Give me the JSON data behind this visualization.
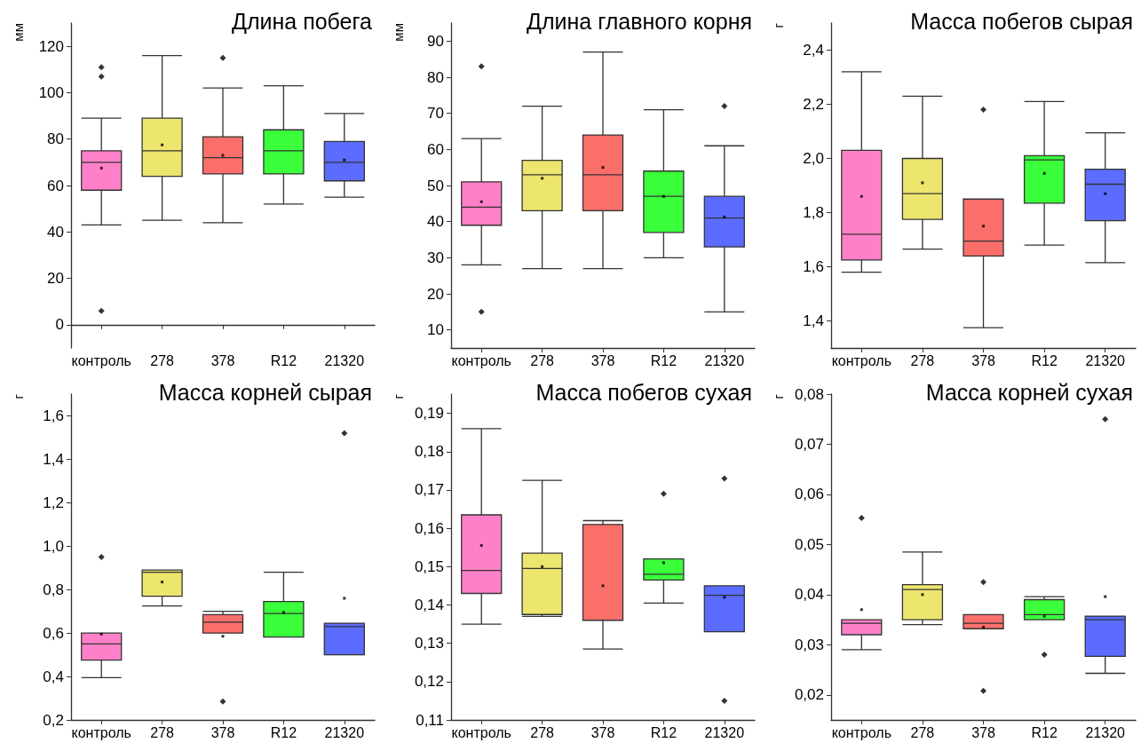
{
  "chart_data": [
    {
      "type": "box",
      "title": "Длина побега",
      "ylabel": "мм",
      "categories": [
        "контроль",
        "278",
        "378",
        "R12",
        "21320"
      ],
      "colors": [
        "#ff80c8",
        "#ede66e",
        "#fb6f6b",
        "#3aff3a",
        "#5b6cff"
      ],
      "grid": false,
      "ylim": [
        -10,
        130
      ],
      "yticks": [
        0,
        20,
        40,
        60,
        80,
        100,
        120
      ],
      "boxes": [
        {
          "low": 43,
          "q1": 58,
          "median": 70,
          "q3": 75,
          "high": 89,
          "mean": 67.5,
          "outliers": [
            6,
            107,
            111
          ]
        },
        {
          "low": 45,
          "q1": 64,
          "median": 75,
          "q3": 89,
          "high": 116,
          "mean": 77.5
        },
        {
          "low": 44,
          "q1": 65,
          "median": 72,
          "q3": 81,
          "high": 102,
          "mean": 73,
          "outliers": [
            115
          ]
        },
        {
          "low": 52,
          "q1": 65,
          "median": 75,
          "q3": 84,
          "high": 103
        },
        {
          "low": 55,
          "q1": 62,
          "median": 70,
          "q3": 79,
          "high": 91,
          "mean": 71
        }
      ]
    },
    {
      "type": "box",
      "title": "Длина главного корня",
      "ylabel": "мм",
      "categories": [
        "контроль",
        "278",
        "378",
        "R12",
        "21320"
      ],
      "colors": [
        "#ff80c8",
        "#ede66e",
        "#fb6f6b",
        "#3aff3a",
        "#5b6cff"
      ],
      "grid": false,
      "ylim": [
        5,
        95
      ],
      "yticks": [
        10,
        20,
        30,
        40,
        50,
        60,
        70,
        80,
        90
      ],
      "boxes": [
        {
          "low": 28,
          "q1": 39,
          "median": 44,
          "q3": 51,
          "high": 63,
          "mean": 45.5,
          "outliers": [
            15,
            83
          ]
        },
        {
          "low": 27,
          "q1": 43,
          "median": 53,
          "q3": 57,
          "high": 72,
          "mean": 52
        },
        {
          "low": 27,
          "q1": 43,
          "median": 53,
          "q3": 64,
          "high": 87,
          "mean": 55
        },
        {
          "low": 30,
          "q1": 37,
          "median": 47,
          "q3": 54,
          "high": 71,
          "mean": 47
        },
        {
          "low": 15,
          "q1": 33,
          "median": 41,
          "q3": 47,
          "high": 61,
          "mean": 41.3,
          "outliers": [
            72
          ]
        }
      ]
    },
    {
      "type": "box",
      "title": "Масса побегов сырая",
      "ylabel": "г",
      "categories": [
        "контроль",
        "278",
        "378",
        "R12",
        "21320"
      ],
      "colors": [
        "#ff80c8",
        "#ede66e",
        "#fb6f6b",
        "#3aff3a",
        "#5b6cff"
      ],
      "grid": false,
      "ylim": [
        1.3,
        2.5
      ],
      "yticks": [
        {
          "value": 1.4,
          "label": "1,4"
        },
        {
          "value": 1.6,
          "label": "1,6"
        },
        {
          "value": 1.8,
          "label": "1,8"
        },
        {
          "value": 2.0,
          "label": "2,0"
        },
        {
          "value": 2.2,
          "label": "2,2"
        },
        {
          "value": 2.4,
          "label": "2,4"
        }
      ],
      "boxes": [
        {
          "low": 1.58,
          "q1": 1.625,
          "median": 1.72,
          "q3": 2.03,
          "high": 2.32,
          "mean": 1.86
        },
        {
          "low": 1.665,
          "q1": 1.775,
          "median": 1.87,
          "q3": 2.0,
          "high": 2.23,
          "mean": 1.91
        },
        {
          "low": 1.375,
          "q1": 1.64,
          "median": 1.695,
          "q3": 1.85,
          "high": 1.85,
          "mean": 1.75,
          "outliers": [
            2.18
          ]
        },
        {
          "low": 1.68,
          "q1": 1.835,
          "median": 1.995,
          "q3": 2.01,
          "high": 2.21,
          "mean": 1.945
        },
        {
          "low": 1.615,
          "q1": 1.77,
          "median": 1.905,
          "q3": 1.96,
          "high": 2.095,
          "mean": 1.87
        }
      ]
    },
    {
      "type": "box",
      "title": "Масса корней сырая",
      "ylabel": "г",
      "categories": [
        "контроль",
        "278",
        "378",
        "R12",
        "21320"
      ],
      "colors": [
        "#ff80c8",
        "#ede66e",
        "#fb6f6b",
        "#3aff3a",
        "#5b6cff"
      ],
      "grid": false,
      "ylim": [
        0.2,
        1.7
      ],
      "yticks": [
        {
          "value": 0.2,
          "label": "0,2"
        },
        {
          "value": 0.4,
          "label": "0,4"
        },
        {
          "value": 0.6,
          "label": "0,6"
        },
        {
          "value": 0.8,
          "label": "0,8"
        },
        {
          "value": 1.0,
          "label": "1,0"
        },
        {
          "value": 1.2,
          "label": "1,2"
        },
        {
          "value": 1.4,
          "label": "1,4"
        },
        {
          "value": 1.6,
          "label": "1,6"
        }
      ],
      "boxes": [
        {
          "low": 0.395,
          "q1": 0.475,
          "median": 0.55,
          "q3": 0.6,
          "high": 0.6,
          "mean": 0.595,
          "outliers": [
            0.95
          ]
        },
        {
          "low": 0.725,
          "q1": 0.77,
          "median": 0.88,
          "q3": 0.89,
          "high": 0.89,
          "mean": 0.835
        },
        {
          "low": 0.6,
          "q1": 0.6,
          "median": 0.65,
          "q3": 0.685,
          "high": 0.7,
          "mean": 0.585,
          "outliers": [
            0.285
          ]
        },
        {
          "low": 0.582,
          "q1": 0.582,
          "median": 0.69,
          "q3": 0.745,
          "high": 0.88,
          "mean": 0.695
        },
        {
          "low": 0.5,
          "q1": 0.5,
          "median": 0.63,
          "q3": 0.645,
          "high": 0.645,
          "mean": 0.76,
          "outliers": [
            1.52
          ]
        }
      ]
    },
    {
      "type": "box",
      "title": "Масса побегов сухая",
      "ylabel": "г",
      "categories": [
        "контроль",
        "278",
        "378",
        "R12",
        "21320"
      ],
      "colors": [
        "#ff80c8",
        "#ede66e",
        "#fb6f6b",
        "#3aff3a",
        "#5b6cff"
      ],
      "grid": false,
      "ylim": [
        0.11,
        0.195
      ],
      "yticks": [
        {
          "value": 0.11,
          "label": "0,11"
        },
        {
          "value": 0.12,
          "label": "0,12"
        },
        {
          "value": 0.13,
          "label": "0,13"
        },
        {
          "value": 0.14,
          "label": "0,14"
        },
        {
          "value": 0.15,
          "label": "0,15"
        },
        {
          "value": 0.16,
          "label": "0,16"
        },
        {
          "value": 0.17,
          "label": "0,17"
        },
        {
          "value": 0.18,
          "label": "0,18"
        },
        {
          "value": 0.19,
          "label": "0,19"
        }
      ],
      "boxes": [
        {
          "low": 0.135,
          "q1": 0.143,
          "median": 0.149,
          "q3": 0.1635,
          "high": 0.186,
          "mean": 0.1555
        },
        {
          "low": 0.137,
          "q1": 0.1375,
          "median": 0.1495,
          "q3": 0.1535,
          "high": 0.1725,
          "mean": 0.15
        },
        {
          "low": 0.1285,
          "q1": 0.136,
          "median": 0.161,
          "q3": 0.161,
          "high": 0.162,
          "mean": 0.145
        },
        {
          "low": 0.1405,
          "q1": 0.1465,
          "median": 0.148,
          "q3": 0.152,
          "high": 0.152,
          "mean": 0.151,
          "outliers": [
            0.169
          ]
        },
        {
          "low": 0.133,
          "q1": 0.133,
          "median": 0.1425,
          "q3": 0.145,
          "high": 0.145,
          "mean": 0.142,
          "outliers": [
            0.115,
            0.173
          ]
        }
      ]
    },
    {
      "type": "box",
      "title": "Масса корней сухая",
      "ylabel": "г",
      "categories": [
        "контроль",
        "278",
        "378",
        "R12",
        "21320"
      ],
      "colors": [
        "#ff80c8",
        "#ede66e",
        "#fb6f6b",
        "#3aff3a",
        "#5b6cff"
      ],
      "grid": false,
      "ylim": [
        0.015,
        0.08
      ],
      "yticks": [
        {
          "value": 0.02,
          "label": "0,02"
        },
        {
          "value": 0.03,
          "label": "0,03"
        },
        {
          "value": 0.04,
          "label": "0,04"
        },
        {
          "value": 0.05,
          "label": "0,05"
        },
        {
          "value": 0.06,
          "label": "0,06"
        },
        {
          "value": 0.07,
          "label": "0,07"
        },
        {
          "value": 0.08,
          "label": "0,08"
        }
      ],
      "boxes": [
        {
          "low": 0.029,
          "q1": 0.032,
          "median": 0.0343,
          "q3": 0.035,
          "high": 0.035,
          "mean": 0.037,
          "outliers": [
            0.0553
          ]
        },
        {
          "low": 0.034,
          "q1": 0.035,
          "median": 0.041,
          "q3": 0.042,
          "high": 0.0485,
          "mean": 0.04
        },
        {
          "low": 0.0332,
          "q1": 0.0332,
          "median": 0.0343,
          "q3": 0.036,
          "high": 0.036,
          "mean": 0.0335,
          "outliers": [
            0.0208,
            0.0425
          ]
        },
        {
          "low": 0.035,
          "q1": 0.035,
          "median": 0.036,
          "q3": 0.039,
          "high": 0.0396,
          "mean": 0.0357,
          "outliers": [
            0.028
          ]
        },
        {
          "low": 0.0243,
          "q1": 0.0277,
          "median": 0.035,
          "q3": 0.0357,
          "high": 0.0357,
          "mean": 0.0396,
          "outliers": [
            0.075
          ]
        }
      ]
    }
  ]
}
